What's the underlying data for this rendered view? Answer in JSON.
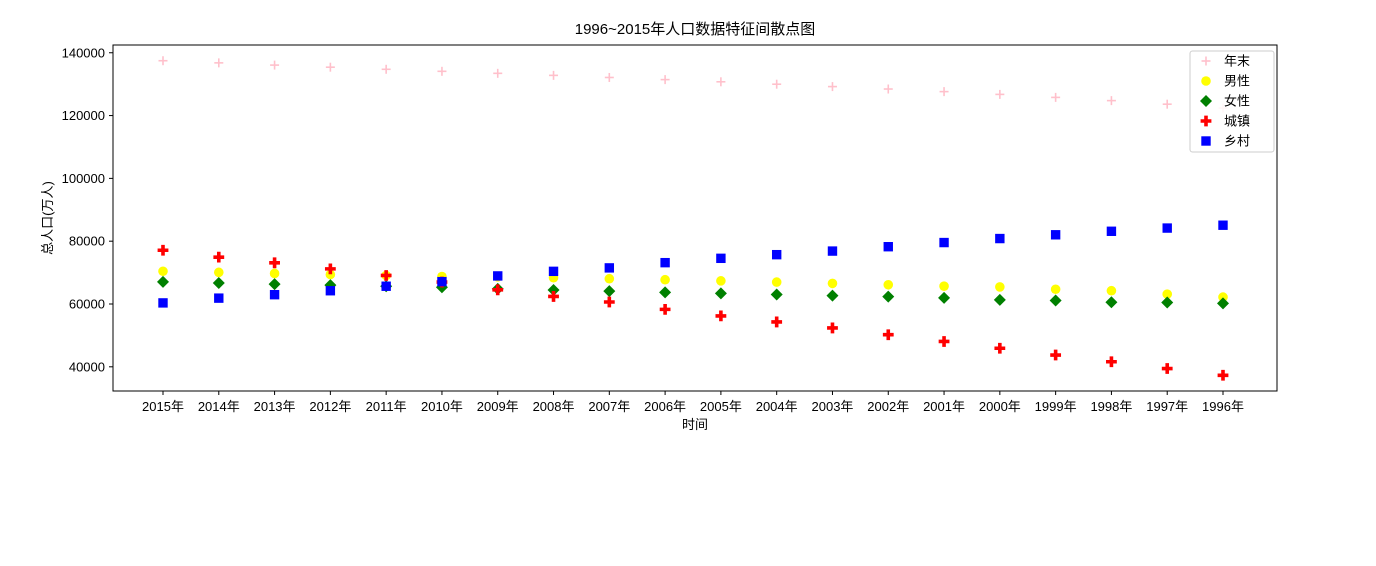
{
  "figure": {
    "background": "#ffffff",
    "border_color": "#000000",
    "legend_border_color": "#cccccc",
    "legend_background": "#ffffff"
  },
  "chart_data": {
    "type": "scatter",
    "title": "1996~2015年人口数据特征间散点图",
    "xlabel": "时间",
    "ylabel": "总人口(万人)",
    "legend_position": "upper right",
    "grid": false,
    "ylim": [
      32296,
      142470
    ],
    "y_ticks": [
      40000,
      60000,
      80000,
      100000,
      120000,
      140000
    ],
    "categories": [
      "2015年",
      "2014年",
      "2013年",
      "2012年",
      "2011年",
      "2010年",
      "2009年",
      "2008年",
      "2007年",
      "2006年",
      "2005年",
      "2004年",
      "2003年",
      "2002年",
      "2001年",
      "2000年",
      "1999年",
      "1998年",
      "1997年",
      "1996年"
    ],
    "series": [
      {
        "name": "年末",
        "marker": "plus-thin",
        "color": "#FFC0CB",
        "values": [
          137462,
          136782,
          136072,
          135404,
          134735,
          134091,
          133450,
          132802,
          132129,
          131448,
          130756,
          129988,
          129227,
          128453,
          127627,
          126743,
          125786,
          124761,
          123626,
          122389
        ]
      },
      {
        "name": "男性",
        "marker": "circle",
        "color": "#FFFF00",
        "values": [
          70414,
          70079,
          69728,
          69395,
          69068,
          68748,
          68647,
          68357,
          68048,
          67728,
          67375,
          66976,
          66556,
          66115,
          65672,
          65437,
          64692,
          64222,
          63131,
          62200
        ]
      },
      {
        "name": "女性",
        "marker": "diamond",
        "color": "#008000",
        "values": [
          67048,
          66703,
          66344,
          66009,
          65667,
          65343,
          64803,
          64445,
          64081,
          63720,
          63381,
          63012,
          62671,
          62338,
          61955,
          61306,
          61094,
          60539,
          60495,
          60189
        ]
      },
      {
        "name": "城镇",
        "marker": "plus-thick",
        "color": "#FF0000",
        "values": [
          77116,
          74916,
          73111,
          71182,
          69079,
          66978,
          64512,
          62403,
          60633,
          58288,
          56212,
          54283,
          52376,
          50212,
          48064,
          45906,
          43748,
          41608,
          39449,
          37304
        ]
      },
      {
        "name": "乡村",
        "marker": "square",
        "color": "#0000FF",
        "values": [
          60346,
          61866,
          62961,
          64222,
          65656,
          67113,
          68938,
          70399,
          71496,
          73160,
          74544,
          75705,
          76851,
          78241,
          79563,
          80837,
          82038,
          83153,
          84177,
          85085
        ]
      }
    ]
  }
}
